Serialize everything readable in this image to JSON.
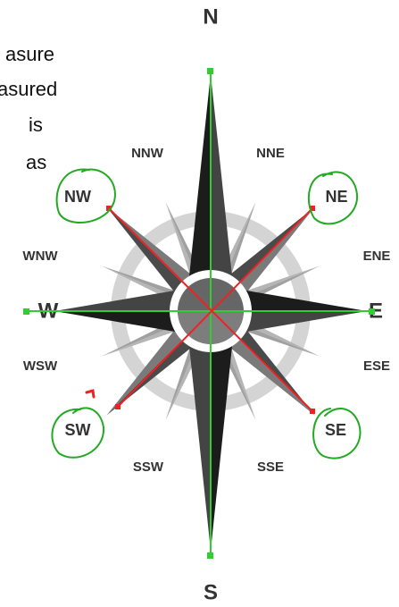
{
  "text_fragments": [
    "asure",
    "asured",
    "is",
    "as"
  ],
  "compass": {
    "points": [
      "N",
      "NNE",
      "NE",
      "ENE",
      "E",
      "ESE",
      "SE",
      "SSE",
      "S",
      "SSW",
      "SW",
      "WSW",
      "W",
      "WNW",
      "NW",
      "NNW"
    ]
  }
}
